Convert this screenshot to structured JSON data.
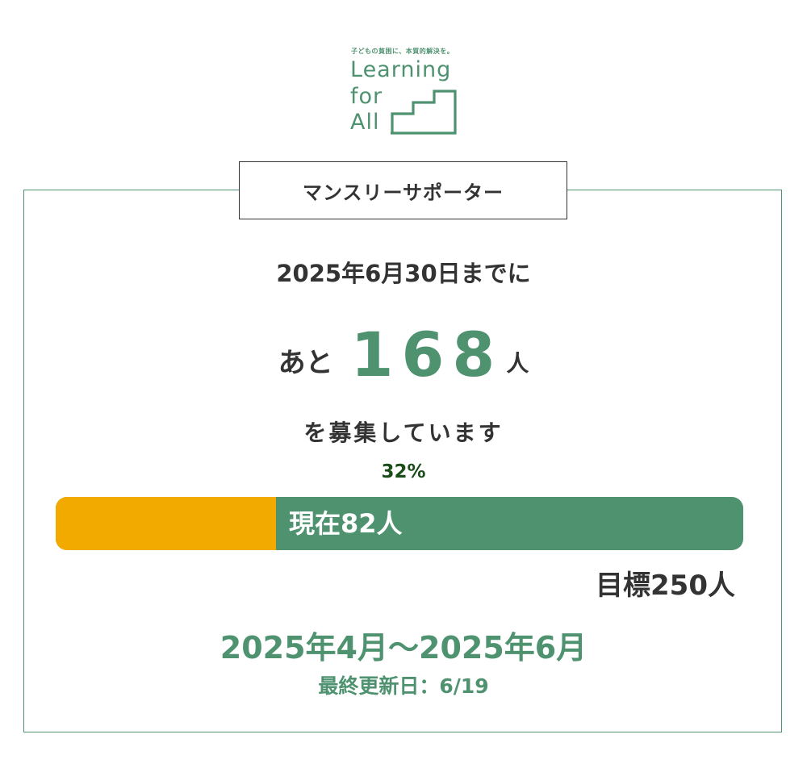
{
  "logo": {
    "tagline": "子どもの貧困に、本質的解決を。",
    "line1": "Learning",
    "line2": "for",
    "line3": "All"
  },
  "title": "マンスリーサポーター",
  "deadline": "2025年6月30日までに",
  "remaining": {
    "prefix": "あと",
    "number": "168",
    "suffix": "人"
  },
  "recruiting": "を募集しています",
  "progress": {
    "percent_label": "32%",
    "fraction": 0.32,
    "current_label": "現在82人"
  },
  "goal": "目標250人",
  "period": "2025年4月〜2025年6月",
  "updated": "最終更新日：6/19",
  "colors": {
    "brand_green": "#4e9270",
    "progress_orange": "#f3aa00",
    "text_dark": "#333333"
  }
}
